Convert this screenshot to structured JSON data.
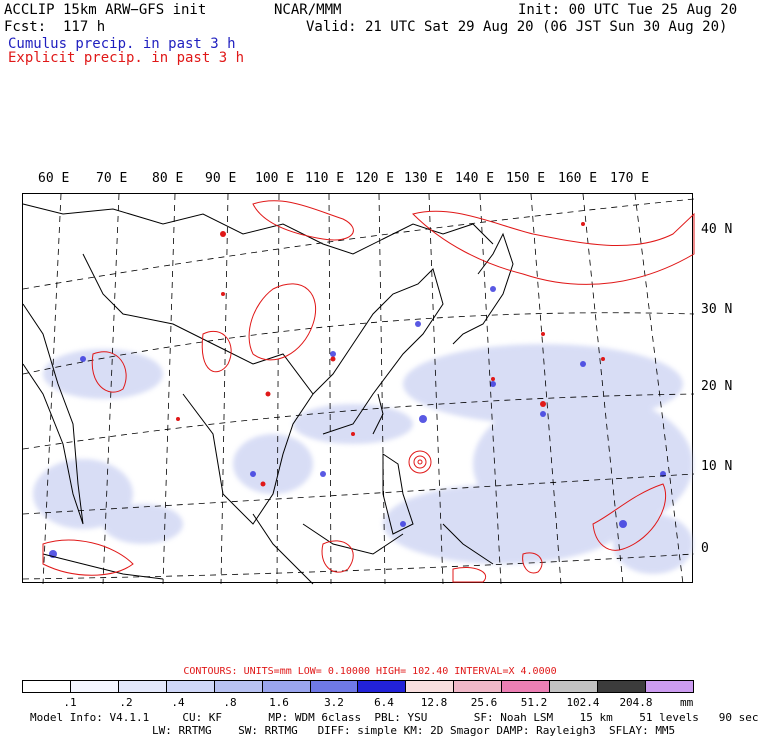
{
  "header": {
    "model": "ACCLIP 15km ARW−GFS init",
    "org": "NCAR/MMM",
    "init": "Init: 00 UTC Tue 25 Aug 20",
    "fcst": "Fcst:  117 h",
    "valid": "Valid: 21 UTC Sat 29 Aug 20 (06 JST Sun 30 Aug 20)",
    "legend_cumulus": "Cumulus precip. in past 3 h",
    "legend_explicit": "Explicit precip. in past 3 h"
  },
  "map": {
    "lon_labels": [
      "60 E",
      "70 E",
      "80 E",
      "90 E",
      "100 E",
      "110 E",
      "120 E",
      "130 E",
      "140 E",
      "150 E",
      "160 E",
      "170 E"
    ],
    "lat_labels": [
      "40 N",
      "30 N",
      "20 N",
      "10 N",
      "0"
    ],
    "colors": {
      "explicit": "#e01818",
      "cumulus": "#1f1fdd",
      "cumulus_light": "#b9c2ee",
      "coast": "#000000"
    }
  },
  "contours_line": "CONTOURS:  UNITS=mm  LOW=  0.10000        HIGH=  102.40        INTERVAL=X  4.0000",
  "colorbar": {
    "colors": [
      "#ffffff",
      "#f4f6ff",
      "#e3e8fb",
      "#cfd7f8",
      "#b8c2f2",
      "#9aa5ee",
      "#6f79e6",
      "#2222d8",
      "#f8dede",
      "#f0b8c8",
      "#ec7fb4",
      "#c2c2c2",
      "#3c3c3c",
      "#cc9cf0"
    ],
    "ticks": [
      ".1",
      ".2",
      ".4",
      ".8",
      "1.6",
      "3.2",
      "6.4",
      "12.8",
      "25.6",
      "51.2",
      "102.4",
      "204.8"
    ],
    "unit": "mm"
  },
  "model_info": {
    "line1": "Model Info: V4.1.1     CU: KF       MP: WDM 6class  PBL: YSU       SF: Noah LSM    15 km    51 levels   90 sec",
    "line2": "LW: RRTMG    SW: RRTMG   DIFF: simple KM: 2D Smagor DAMP: Rayleigh3  SFLAY: MM5"
  }
}
